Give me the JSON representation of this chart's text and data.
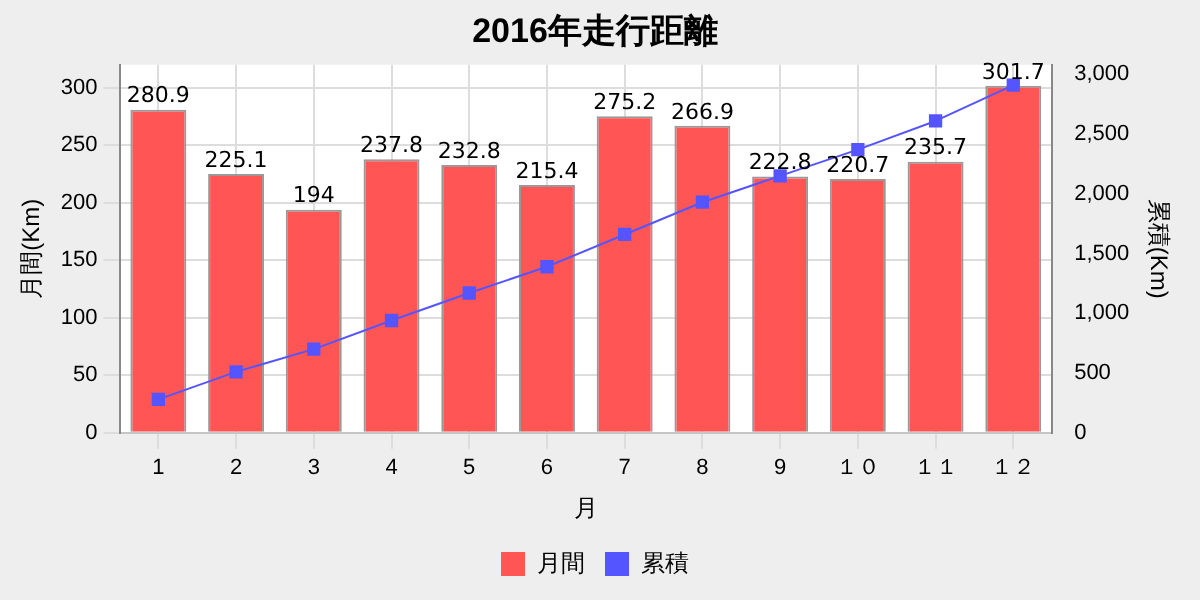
{
  "chart_data": {
    "type": "bar",
    "title": "2016年走行距離",
    "xlabel": "月",
    "ylabel": "月間(Km)",
    "y2label": "累積(Km)",
    "categories": [
      "1",
      "2",
      "3",
      "4",
      "5",
      "6",
      "7",
      "8",
      "9",
      "１０",
      "１１",
      "１２"
    ],
    "series": [
      {
        "name": "月間",
        "color": "#ff5555",
        "values": [
          280.9,
          225.1,
          194,
          237.8,
          232.8,
          215.4,
          275.2,
          266.9,
          222.8,
          220.7,
          235.7,
          301.7
        ],
        "value_labels": [
          "280.9",
          "225.1",
          "194",
          "237.8",
          "232.8",
          "215.4",
          "275.2",
          "266.9",
          "222.8",
          "220.7",
          "235.7",
          "301.7"
        ]
      },
      {
        "name": "累積",
        "type": "line",
        "axis": "y2",
        "color": "#5555ff",
        "marker": "square",
        "values": [
          280,
          510,
          700,
          940,
          1170,
          1390,
          1660,
          1930,
          2150,
          2370,
          2610,
          2910
        ]
      }
    ],
    "ylim": [
      0,
      320
    ],
    "yticks": [
      0,
      50,
      100,
      150,
      200,
      250,
      300
    ],
    "y2lim": [
      0,
      3080
    ],
    "y2ticks": [
      0,
      {
        "value": 500,
        "label": "500"
      },
      {
        "value": 1000,
        "label": "1,000"
      },
      {
        "value": 1500,
        "label": "1,500"
      },
      {
        "value": 2000,
        "label": "2,000"
      },
      {
        "value": 2500,
        "label": "2,500"
      },
      {
        "value": 3000,
        "label": "3,000"
      }
    ],
    "grid": true,
    "legend": "bottom"
  }
}
